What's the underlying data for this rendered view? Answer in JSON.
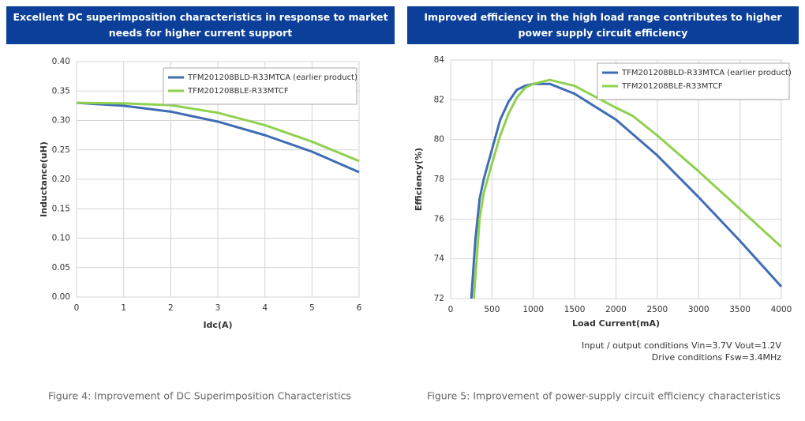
{
  "chart_data": [
    {
      "type": "line",
      "title": "Excellent DC superimposition characteristics in response to market needs for higher current support",
      "x_label": "Idc(A)",
      "y_label": "Inductance(uH)",
      "x": [
        0,
        1,
        2,
        3,
        4,
        5,
        6
      ],
      "series": [
        {
          "name": "TFM201208BLD-R33MTCA (earlier product)",
          "color": "#3f6cb3",
          "values": [
            0.33,
            0.325,
            0.315,
            0.298,
            0.275,
            0.247,
            0.212
          ]
        },
        {
          "name": "TFM201208BLE-R33MTCF",
          "color": "#8fd14f",
          "values": [
            0.33,
            0.329,
            0.326,
            0.313,
            0.292,
            0.264,
            0.231
          ]
        }
      ],
      "xlim": [
        0,
        6
      ],
      "xticks": [
        0,
        1,
        2,
        3,
        4,
        5,
        6
      ],
      "ylim": [
        0,
        0.4
      ],
      "yticks": [
        {
          "value": 0,
          "label": "0.00"
        },
        {
          "value": 0.05,
          "label": "0.05"
        },
        {
          "value": 0.1,
          "label": "0.10"
        },
        {
          "value": 0.15,
          "label": "0.15"
        },
        {
          "value": 0.2,
          "label": "0.20"
        },
        {
          "value": 0.25,
          "label": "0.25"
        },
        {
          "value": 0.3,
          "label": "0.30"
        },
        {
          "value": 0.35,
          "label": "0.35"
        },
        {
          "value": 0.4,
          "label": "0.40"
        }
      ],
      "grid": true,
      "legend": "upper right",
      "caption": "Figure 4: Improvement of DC Superimposition Characteristics"
    },
    {
      "type": "line",
      "title": "Improved efficiency in the high load range contributes to higher power supply circuit efficiency",
      "x_label": "Load Current(mA)",
      "y_label": "Efficiency(%)",
      "series": [
        {
          "name": "TFM201208BLD-R33MTCA (earlier product)",
          "color": "#3f6cb3",
          "x": [
            250,
            300,
            350,
            400,
            500,
            600,
            700,
            800,
            900,
            1000,
            1200,
            1500,
            2000,
            2500,
            3000,
            3500,
            4000
          ],
          "values": [
            72,
            75,
            77,
            78,
            79.5,
            81,
            81.9,
            82.5,
            82.7,
            82.8,
            82.8,
            82.3,
            81,
            79.2,
            77.1,
            74.9,
            72.6
          ]
        },
        {
          "name": "TFM201208BLE-R33MTCF",
          "color": "#8fd14f",
          "x": [
            280,
            350,
            400,
            500,
            600,
            700,
            800,
            900,
            1000,
            1200,
            1500,
            2000,
            2200,
            2500,
            3000,
            3500,
            4000
          ],
          "values": [
            72,
            76,
            77.3,
            78.8,
            80.2,
            81.3,
            82.1,
            82.6,
            82.8,
            83,
            82.7,
            81.6,
            81.2,
            80.2,
            78.4,
            76.5,
            74.6
          ]
        }
      ],
      "xlim": [
        0,
        4000
      ],
      "xticks": [
        0,
        500,
        1000,
        1500,
        2000,
        2500,
        3000,
        3500,
        4000
      ],
      "ylim": [
        72,
        84
      ],
      "yticks": [
        72,
        74,
        76,
        78,
        80,
        82,
        84
      ],
      "grid": true,
      "legend": "upper right",
      "annotations": [
        "Input / output conditions Vin=3.7V Vout=1.2V",
        "Drive conditions Fsw=3.4MHz"
      ],
      "caption": "Figure 5: Improvement of power-supply circuit efficiency characteristics"
    }
  ]
}
